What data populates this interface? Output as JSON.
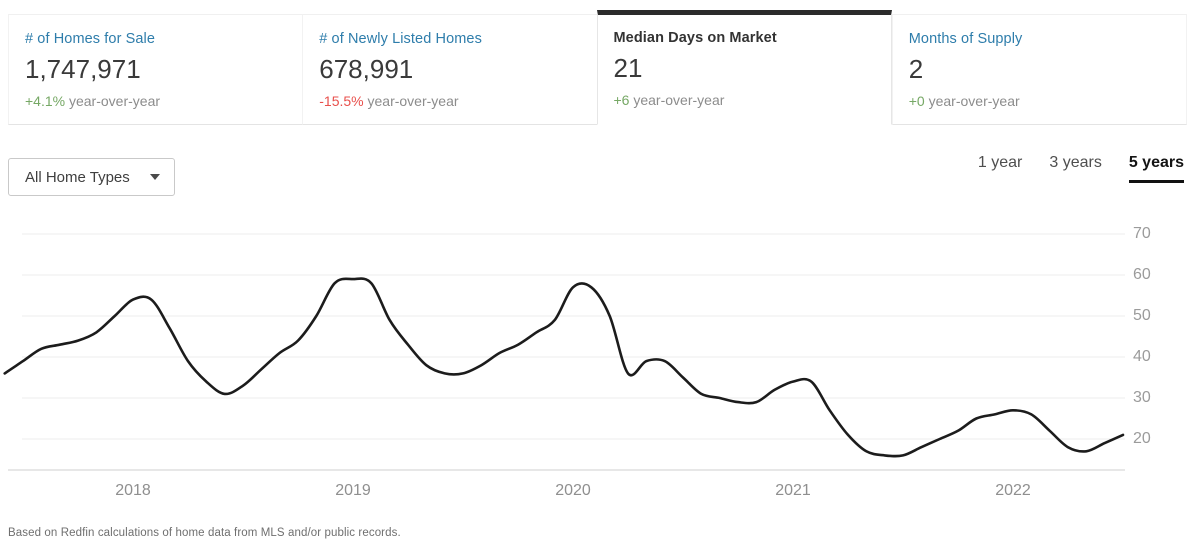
{
  "colors": {
    "accent_blue": "#2e7dab",
    "positive_green": "#76a865",
    "negative_red": "#e8504c",
    "active_tab_bar": "#2b2b2b",
    "line": "#1c1c1c",
    "grid": "#ececec",
    "axis_baseline": "#dfdfdf"
  },
  "tabs": [
    {
      "label": "# of Homes for Sale",
      "value": "1,747,971",
      "delta": "+4.1%",
      "delta_color": "#76a865",
      "suffix": " year-over-year",
      "active": false
    },
    {
      "label": "# of Newly Listed Homes",
      "value": "678,991",
      "delta": "-15.5%",
      "delta_color": "#e8504c",
      "suffix": " year-over-year",
      "active": false
    },
    {
      "label": "Median Days on Market",
      "value": "21",
      "delta": "+6",
      "delta_color": "#76a865",
      "suffix": " year-over-year",
      "active": true
    },
    {
      "label": "Months of Supply",
      "value": "2",
      "delta": "+0",
      "delta_color": "#76a865",
      "suffix": " year-over-year",
      "active": false
    }
  ],
  "filters": {
    "home_type_label": "All Home Types"
  },
  "range_selector": {
    "items": [
      {
        "label": "1 year",
        "active": false
      },
      {
        "label": "3 years",
        "active": false
      },
      {
        "label": "5 years",
        "active": true
      }
    ]
  },
  "chart_data": {
    "type": "line",
    "title": "Median Days on Market",
    "series_name": "Median Days on Market (days)",
    "x": [
      "2017-06",
      "2017-07",
      "2017-08",
      "2017-09",
      "2017-10",
      "2017-11",
      "2017-12",
      "2018-01",
      "2018-02",
      "2018-03",
      "2018-04",
      "2018-05",
      "2018-06",
      "2018-07",
      "2018-08",
      "2018-09",
      "2018-10",
      "2018-11",
      "2018-12",
      "2019-01",
      "2019-02",
      "2019-03",
      "2019-04",
      "2019-05",
      "2019-06",
      "2019-07",
      "2019-08",
      "2019-09",
      "2019-10",
      "2019-11",
      "2019-12",
      "2020-01",
      "2020-02",
      "2020-03",
      "2020-04",
      "2020-05",
      "2020-06",
      "2020-07",
      "2020-08",
      "2020-09",
      "2020-10",
      "2020-11",
      "2020-12",
      "2021-01",
      "2021-02",
      "2021-03",
      "2021-04",
      "2021-05",
      "2021-06",
      "2021-07",
      "2021-08",
      "2021-09",
      "2021-10",
      "2021-11",
      "2021-12",
      "2022-01",
      "2022-02",
      "2022-03",
      "2022-04",
      "2022-05",
      "2022-06",
      "2022-07"
    ],
    "values": [
      36,
      39,
      42,
      43,
      44,
      46,
      50,
      54,
      54,
      47,
      39,
      34,
      31,
      33,
      37,
      41,
      44,
      50,
      58,
      59,
      58,
      49,
      43,
      38,
      36,
      36,
      38,
      41,
      43,
      46,
      49,
      57,
      57,
      50,
      36,
      39,
      39,
      35,
      31,
      30,
      29,
      29,
      32,
      34,
      34,
      27,
      21,
      17,
      16,
      16,
      18,
      20,
      22,
      25,
      26,
      27,
      26,
      22,
      18,
      17,
      19,
      21
    ],
    "y_ticks": [
      70,
      60,
      50,
      40,
      30,
      20
    ],
    "x_year_labels": [
      "2018",
      "2019",
      "2020",
      "2021",
      "2022"
    ],
    "ylim": [
      12,
      76
    ],
    "grid": "horizontal",
    "legend": "none",
    "line_color": "#1c1c1c"
  },
  "footer": {
    "text": "Based on Redfin calculations of home data from MLS and/or public records."
  }
}
